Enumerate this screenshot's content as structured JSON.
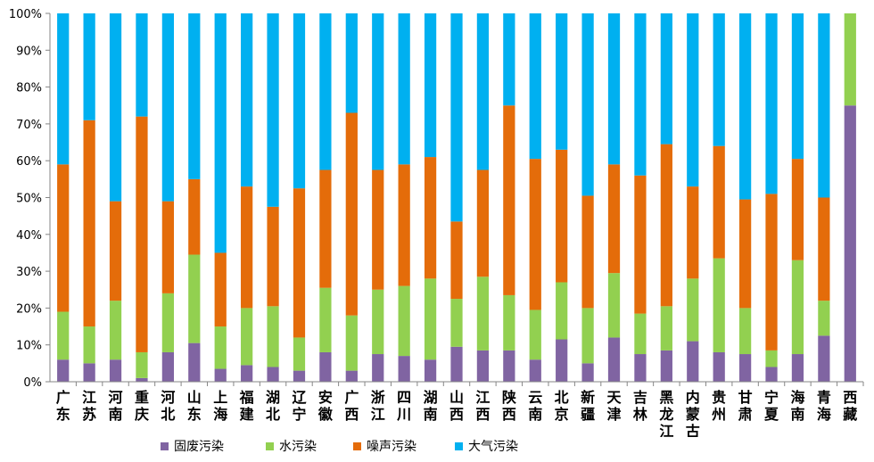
{
  "chart_data": {
    "type": "bar",
    "stacked": "percent",
    "categories": [
      "广东",
      "江苏",
      "河南",
      "重庆",
      "河北",
      "山东",
      "上海",
      "福建",
      "湖北",
      "辽宁",
      "安徽",
      "广西",
      "浙江",
      "四川",
      "湖南",
      "山西",
      "江西",
      "陕西",
      "云南",
      "北京",
      "新疆",
      "天津",
      "吉林",
      "黑龙江",
      "内蒙古",
      "贵州",
      "甘肃",
      "宁夏",
      "海南",
      "青海",
      "西藏"
    ],
    "series": [
      {
        "name": "固废污染",
        "color": "#8064A2",
        "values": [
          6,
          5,
          6,
          1,
          8,
          10.5,
          3.5,
          4.5,
          4,
          3,
          8,
          3,
          7.5,
          7,
          6,
          9.5,
          8.5,
          8.5,
          6,
          11.5,
          5,
          12,
          7.5,
          8.5,
          11,
          8,
          7.5,
          4,
          7.5,
          12.5,
          75
        ]
      },
      {
        "name": "水污染",
        "color": "#92D050",
        "values": [
          13,
          10,
          16,
          7,
          16,
          24,
          11.5,
          15.5,
          16.5,
          9,
          17.5,
          15,
          17.5,
          19,
          22,
          13,
          20,
          15,
          13.5,
          15.5,
          15,
          17.5,
          11,
          12,
          17,
          25.5,
          12.5,
          4.5,
          25.5,
          9.5,
          25
        ]
      },
      {
        "name": "噪声污染",
        "color": "#E46C0A",
        "values": [
          40,
          56,
          27,
          64,
          25,
          20.5,
          20,
          33,
          27,
          40.5,
          32,
          55,
          32.5,
          33,
          33,
          21,
          29,
          51.5,
          41,
          36,
          30.5,
          29.5,
          37.5,
          44,
          25,
          30.5,
          29.5,
          42.5,
          27.5,
          28,
          0
        ]
      },
      {
        "name": "大气污染",
        "color": "#00B0F0",
        "values": [
          41,
          29,
          51,
          28,
          51,
          45,
          65,
          47,
          52.5,
          47.5,
          42.5,
          27,
          42.5,
          41,
          39,
          56.5,
          42.5,
          25,
          39.5,
          37,
          49.5,
          41,
          44,
          35.5,
          47,
          36,
          50.5,
          49,
          39.5,
          50,
          0
        ]
      }
    ],
    "yticks": [
      "0%",
      "10%",
      "20%",
      "30%",
      "40%",
      "50%",
      "60%",
      "70%",
      "80%",
      "90%",
      "100%"
    ],
    "ylim": [
      0,
      100
    ],
    "xlabel": "",
    "ylabel": "",
    "title": "",
    "legend_position": "bottom"
  }
}
